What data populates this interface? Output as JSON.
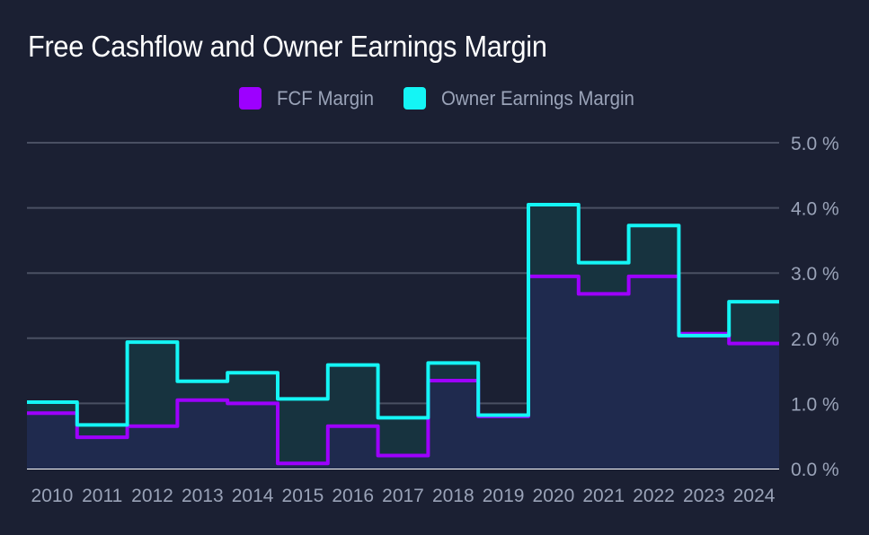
{
  "chart_data": {
    "type": "line",
    "step": true,
    "title": "Free Cashflow and Owner Earnings Margin",
    "x": [
      "2010",
      "2011",
      "2012",
      "2013",
      "2014",
      "2015",
      "2016",
      "2017",
      "2018",
      "2019",
      "2020",
      "2021",
      "2022",
      "2023",
      "2024"
    ],
    "series": [
      {
        "name": "FCF Margin",
        "color": "#9d00ff",
        "values": [
          0.85,
          0.48,
          0.65,
          1.05,
          1.0,
          0.08,
          0.65,
          0.2,
          1.35,
          0.8,
          2.95,
          2.68,
          2.95,
          2.07,
          1.92
        ]
      },
      {
        "name": "Owner Earnings Margin",
        "color": "#14f5f5",
        "values": [
          1.02,
          0.67,
          1.94,
          1.34,
          1.47,
          1.07,
          1.59,
          0.78,
          1.62,
          0.82,
          4.05,
          3.16,
          3.73,
          2.04,
          2.56
        ]
      }
    ],
    "y_ticks": [
      "0.0 %",
      "1.0 %",
      "2.0 %",
      "3.0 %",
      "4.0 %",
      "5.0 %"
    ],
    "ylim": [
      0,
      5
    ],
    "grid": true,
    "legend_position": "top-center",
    "y_axis_position": "right"
  },
  "colors": {
    "background": "#1b2033",
    "grid": "#4a5063",
    "baseline": "#ffffff",
    "text": "#9aa3b8"
  }
}
